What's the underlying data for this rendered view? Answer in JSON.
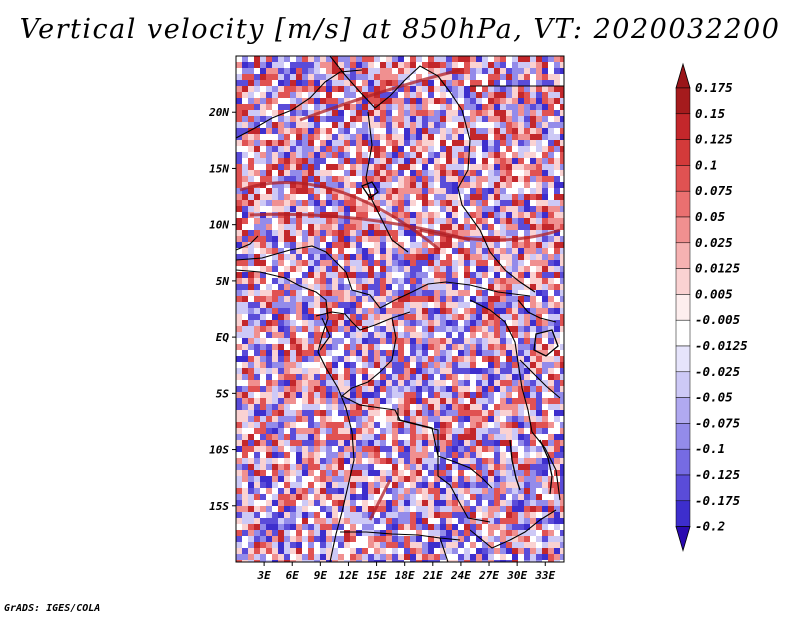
{
  "title": "Vertical velocity [m/s] at 850hPa, VT: 2020032200",
  "footer": "GrADS: IGES/COLA",
  "map": {
    "lon_range": [
      0,
      35
    ],
    "lat_range": [
      -20,
      25
    ],
    "lon_ticks": [
      "3E",
      "6E",
      "9E",
      "12E",
      "15E",
      "18E",
      "21E",
      "24E",
      "27E",
      "30E",
      "33E"
    ],
    "lat_ticks": [
      "20N",
      "15N",
      "10N",
      "5N",
      "EQ",
      "5S",
      "10S",
      "15S"
    ]
  },
  "colorbar": {
    "labels": [
      "0.175",
      "0.15",
      "0.125",
      "0.1",
      "0.075",
      "0.05",
      "0.025",
      "0.0125",
      "0.005",
      "-0.005",
      "-0.0125",
      "-0.025",
      "-0.05",
      "-0.075",
      "-0.1",
      "-0.125",
      "-0.175",
      "-0.2"
    ],
    "colors": [
      "#a51b1d",
      "#c3272b",
      "#d33a3a",
      "#e05252",
      "#ea7070",
      "#f09090",
      "#f6b2b2",
      "#fad2d2",
      "#fdeeee",
      "#ffffff",
      "#e6e4fb",
      "#cdc9f6",
      "#b0a9f0",
      "#938bea",
      "#766be3",
      "#5a4cd9",
      "#3d2ecd",
      "#2510b8"
    ],
    "arrow_top_color": "#9a1519",
    "arrow_bottom_color": "#2a0ab0"
  },
  "field": {
    "palette": [
      "#c3272b",
      "#e05252",
      "#f09090",
      "#fad2d2",
      "#ffffff",
      "#cdc9f6",
      "#938bea",
      "#5a4cd9",
      "#3d2ecd"
    ],
    "seed": 7
  }
}
